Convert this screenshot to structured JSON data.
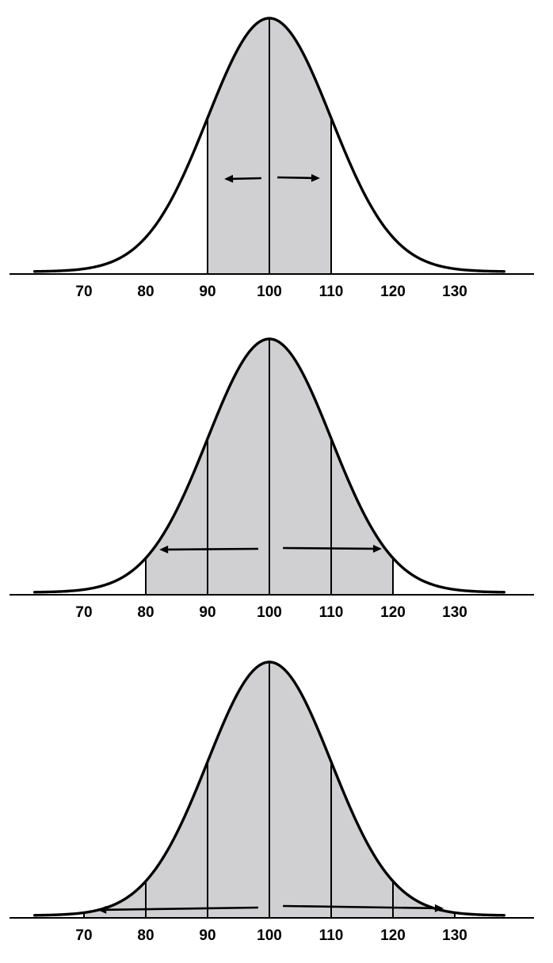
{
  "colors": {
    "curve": "#000000",
    "shade": "#d0cfd1",
    "background": "#ffffff"
  },
  "distribution": {
    "mean": 100,
    "sd": 10
  },
  "panels": [
    {
      "name": "panel-one-sd",
      "shaded_range": [
        90,
        110
      ],
      "dividers": [
        90,
        100,
        110
      ],
      "tick_labels": [
        "70",
        "80",
        "90",
        "100",
        "110",
        "120",
        "130"
      ],
      "arrows": [
        "left",
        "right"
      ]
    },
    {
      "name": "panel-two-sd",
      "shaded_range": [
        80,
        120
      ],
      "dividers": [
        80,
        90,
        100,
        110,
        120
      ],
      "tick_labels": [
        "70",
        "80",
        "90",
        "100",
        "110",
        "120",
        "130"
      ],
      "arrows": [
        "left",
        "right"
      ]
    },
    {
      "name": "panel-three-sd",
      "shaded_range": [
        70,
        130
      ],
      "dividers": [
        70,
        80,
        90,
        100,
        110,
        120,
        130
      ],
      "tick_labels": [
        "70",
        "80",
        "90",
        "100",
        "110",
        "120",
        "130"
      ],
      "arrows": [
        "left",
        "right"
      ]
    }
  ]
}
